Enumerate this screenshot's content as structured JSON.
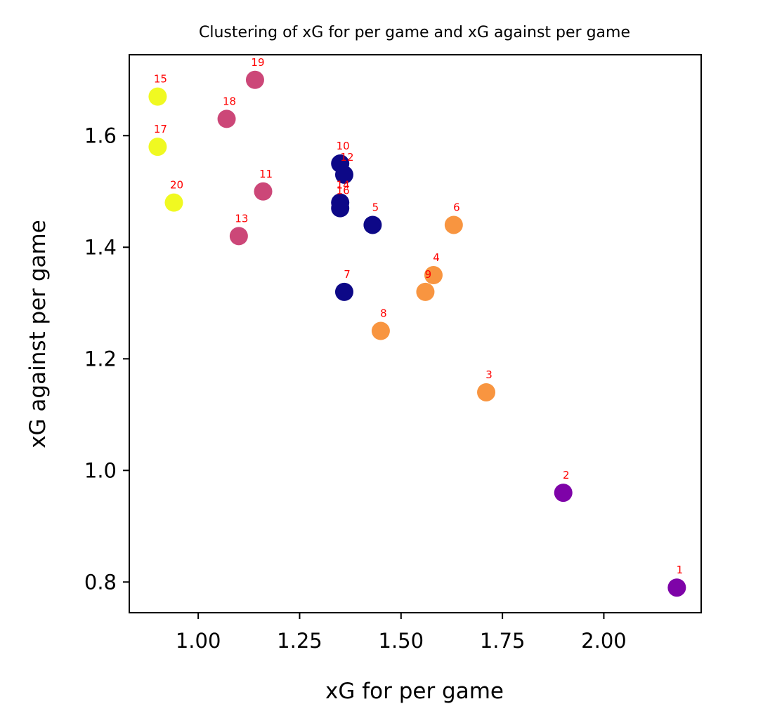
{
  "chart_data": {
    "type": "scatter",
    "title": "Clustering of xG for per game and xG against per game",
    "xlabel": "xG for per game",
    "ylabel": "xG against per game",
    "xlim": [
      0.83,
      2.24
    ],
    "ylim": [
      0.745,
      1.745
    ],
    "xticks": [
      1.0,
      1.25,
      1.5,
      1.75,
      2.0
    ],
    "xtick_labels": [
      "1.00",
      "1.25",
      "1.50",
      "1.75",
      "2.00"
    ],
    "yticks": [
      0.8,
      1.0,
      1.2,
      1.4,
      1.6
    ],
    "ytick_labels": [
      "0.8",
      "1.0",
      "1.2",
      "1.4",
      "1.6"
    ],
    "grid": false,
    "label_color": "#ff0000",
    "cluster_colors": {
      "0": "#0d0887",
      "1": "#7e03a8",
      "2": "#cc4778",
      "3": "#f89540",
      "4": "#f0f921"
    },
    "points": [
      {
        "label": "1",
        "x": 2.18,
        "y": 0.79,
        "cluster": 1
      },
      {
        "label": "2",
        "x": 1.9,
        "y": 0.96,
        "cluster": 1
      },
      {
        "label": "3",
        "x": 1.71,
        "y": 1.14,
        "cluster": 3
      },
      {
        "label": "4",
        "x": 1.58,
        "y": 1.35,
        "cluster": 3
      },
      {
        "label": "5",
        "x": 1.43,
        "y": 1.44,
        "cluster": 0
      },
      {
        "label": "6",
        "x": 1.63,
        "y": 1.44,
        "cluster": 3
      },
      {
        "label": "7",
        "x": 1.36,
        "y": 1.32,
        "cluster": 0
      },
      {
        "label": "8",
        "x": 1.45,
        "y": 1.25,
        "cluster": 3
      },
      {
        "label": "9",
        "x": 1.56,
        "y": 1.32,
        "cluster": 3
      },
      {
        "label": "10",
        "x": 1.35,
        "y": 1.55,
        "cluster": 0
      },
      {
        "label": "11",
        "x": 1.16,
        "y": 1.5,
        "cluster": 2
      },
      {
        "label": "12",
        "x": 1.36,
        "y": 1.53,
        "cluster": 0
      },
      {
        "label": "13",
        "x": 1.1,
        "y": 1.42,
        "cluster": 2
      },
      {
        "label": "14",
        "x": 1.35,
        "y": 1.48,
        "cluster": 0
      },
      {
        "label": "15",
        "x": 0.9,
        "y": 1.67,
        "cluster": 4
      },
      {
        "label": "16",
        "x": 1.35,
        "y": 1.47,
        "cluster": 0
      },
      {
        "label": "17",
        "x": 0.9,
        "y": 1.58,
        "cluster": 4
      },
      {
        "label": "18",
        "x": 1.07,
        "y": 1.63,
        "cluster": 2
      },
      {
        "label": "19",
        "x": 1.14,
        "y": 1.7,
        "cluster": 2
      },
      {
        "label": "20",
        "x": 0.94,
        "y": 1.48,
        "cluster": 4
      }
    ]
  }
}
